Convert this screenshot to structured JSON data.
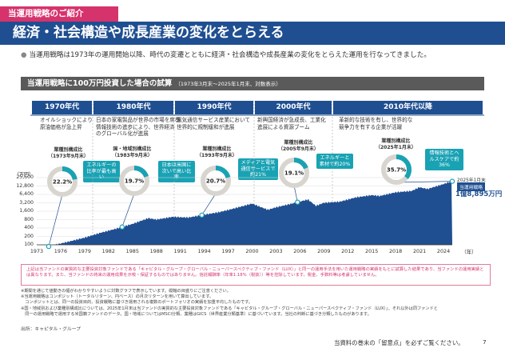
{
  "header": {
    "tag": "当運用戦略のご紹介",
    "title": "経済・社会構造や成長産業の変化をとらえる",
    "intro": "当運用戦略は1973年の運用開始以降、時代の変遷とともに経済・社会構造や成長産業の変化をとらえた運用を行なってきました。",
    "bullet": "●"
  },
  "section": {
    "title": "当運用戦略に100万円投資した場合の試算",
    "subtitle": "（1973年3月末〜2025年1月末、対数表示）"
  },
  "eras": [
    {
      "label": "1970年代",
      "desc": [
        "オイルショックにより",
        "原油価格が急上昇"
      ]
    },
    {
      "label": "1980年代",
      "desc": [
        "日本の家電製品が世界の市場を席巻",
        "情報技術の進歩により、世界経済",
        "のグローバル化が進展"
      ]
    },
    {
      "label": "1990年代",
      "desc": [
        "電気通信サービス産業において",
        "世界的に規制緩和が進展"
      ]
    },
    {
      "label": "2000年代",
      "desc": [
        "新興国経済が急成長、工業化",
        "進展による資源ブーム"
      ]
    },
    {
      "label": "2010年代以降",
      "desc": [
        "革新的な技術を有し、世界的な",
        "競争力を有する企業が活躍"
      ]
    }
  ],
  "rings": [
    {
      "title": "",
      "date": "",
      "value": "22.2%",
      "pct": 22.2
    },
    {
      "title": "国・地域別構成比",
      "date": "（1983年9月末）",
      "value": "19.7%",
      "pct": 19.7
    },
    {
      "title": "業種別構成比",
      "date": "（1993年9月末）",
      "value": "20.7%",
      "pct": 20.7
    },
    {
      "title": "業種別構成比",
      "date": "（2005年9月末）",
      "value": "19.1%",
      "pct": 19.1
    },
    {
      "title": "業種別構成比",
      "date": "（2025年1月末）",
      "value": "35.7%",
      "pct": 35.7
    }
  ],
  "ring1_title": "業種別構成比",
  "ring1_date": "（1973年9月末）",
  "callouts": [
    "エネルギーの比率が最も高い",
    "日本は米国に次いで高い比率",
    "メディアと電気通信サービスで約21%",
    "エネルギーと素材で約20%",
    "情報技術とヘルスケアで約36%"
  ],
  "chart_data": {
    "type": "area",
    "unit": "（万円）",
    "y_ticks": [
      "25,600",
      "12,800",
      "6,400",
      "3,200",
      "1,600",
      "800",
      "400",
      "200",
      "100"
    ],
    "x_ticks": [
      "1973",
      "1976",
      "1979",
      "1982",
      "1985",
      "1988",
      "1991",
      "1994",
      "1997",
      "2000",
      "2003",
      "2006",
      "2009",
      "2012",
      "2015",
      "2018",
      "2021",
      "2024"
    ],
    "x_unit": "（年）",
    "end_date": "2025年1月末",
    "end_series": "当運用戦略",
    "end_value": "1億8,895万円",
    "points": [
      [
        1973,
        100
      ],
      [
        1974,
        80
      ],
      [
        1975,
        95
      ],
      [
        1977,
        130
      ],
      [
        1979,
        180
      ],
      [
        1981,
        270
      ],
      [
        1983,
        380
      ],
      [
        1985,
        560
      ],
      [
        1987,
        900
      ],
      [
        1988,
        800
      ],
      [
        1990,
        1000
      ],
      [
        1992,
        950
      ],
      [
        1994,
        1200
      ],
      [
        1996,
        1500
      ],
      [
        1998,
        2100
      ],
      [
        2000,
        3000
      ],
      [
        2001,
        2300
      ],
      [
        2002,
        1800
      ],
      [
        2003,
        2200
      ],
      [
        2005,
        3000
      ],
      [
        2007,
        4200
      ],
      [
        2008,
        2500
      ],
      [
        2009,
        3200
      ],
      [
        2011,
        3500
      ],
      [
        2013,
        5000
      ],
      [
        2015,
        6000
      ],
      [
        2016,
        5600
      ],
      [
        2018,
        7600
      ],
      [
        2020,
        8500
      ],
      [
        2021,
        11500
      ],
      [
        2022,
        10000
      ],
      [
        2024,
        15000
      ],
      [
        2025,
        18895
      ]
    ]
  },
  "notice": "上記は当ファンドの実質的な主要投資対象ファンドである「キャピタル・グループ・グローバル・ニューパースペクティブ・ファンド（LUX）」と同一の運用手法を用いた運用戦略の実績をもとに試算した結果であり、当ファンドの運用実績とは異なります。また、当ファンドの将来の運用成果を示唆・保証するものではありません。信託報酬率（年率1.18%（税抜））等を控除しています。税金、手数料等は考慮していません。",
  "notes": [
    "※期間を通じて値動きの幅がわかりやすいように対数グラフで表示しています。縦軸の目盛りにご注意ください。",
    "※当運用戦略はコンポジット（トータルリターン、円ベース）の月次リターンを用いて算出しています。",
    "　コンポジットとは、同一の投資目的、投資戦略に基づき運用される複数のポートフォリオの実績を加重平均したものです。",
    "※国・地域別および業種別構成比については、2025年1月末は当ファンドの実質的な主要投資対象ファンドである「キャピタル・グループ・グローバル・ニューパースペクティブ・ファンド（LUX）」、それ以外は同ファンドと",
    "　同一の運用戦略で運用する米国籍ファンドのデータ。国・地域についてはMSCI分類、業種はGICS（世界産業分類基準）に基づいています。当社の判断に基づき分類したものがあります。"
  ],
  "source": "出所：キャピタル・グループ",
  "footer": "当資料の巻末の「留意点」を必ずご覧ください。",
  "page": "7",
  "colors": {
    "brand": "#1f4f91",
    "accent": "#d6336c",
    "teal": "#19a2b4",
    "area": "#1f4f91"
  }
}
